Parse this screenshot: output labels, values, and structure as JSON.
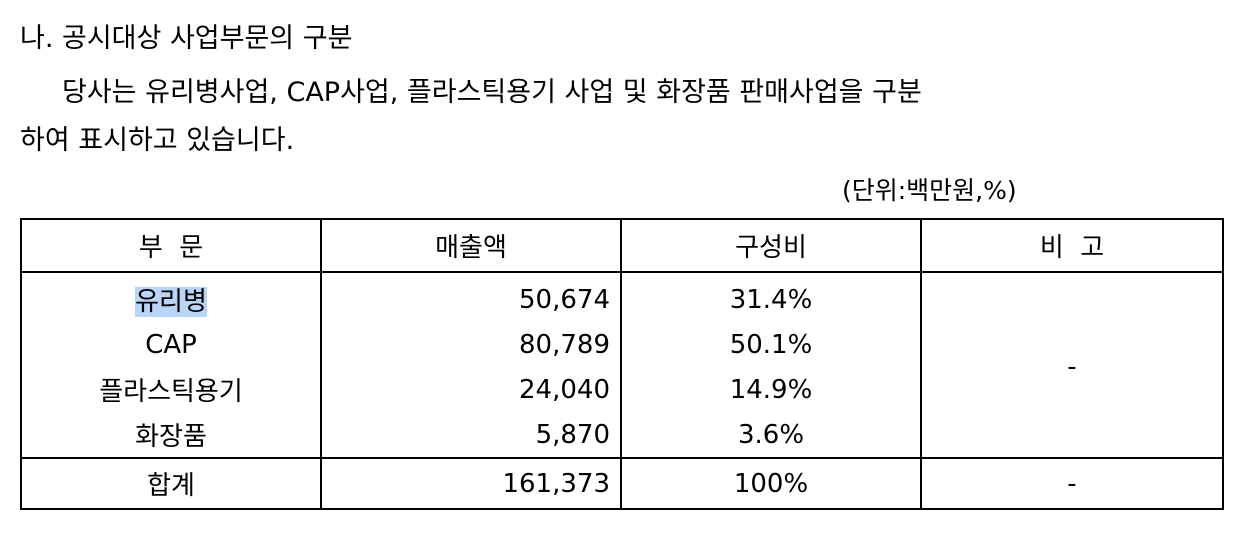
{
  "heading": "나. 공시대상 사업부문의 구분",
  "paragraph_line1": "당사는 유리병사업, CAP사업, 플라스틱용기 사업 및 화장품 판매사업을 구분",
  "paragraph_line2": "하여 표시하고 있습니다.",
  "unit_label": "(단위:백만원,%)",
  "table": {
    "headers": {
      "segment": "부  문",
      "sales": "매출액",
      "ratio": "구성비",
      "note": "비  고"
    },
    "rows": [
      {
        "segment": "유리병",
        "sales": "50,674",
        "ratio": "31.4%"
      },
      {
        "segment": "CAP",
        "sales": "80,789",
        "ratio": "50.1%"
      },
      {
        "segment": "플라스틱용기",
        "sales": "24,040",
        "ratio": "14.9%"
      },
      {
        "segment": "화장품",
        "sales": "5,870",
        "ratio": "3.6%"
      }
    ],
    "rows_note": "-",
    "total": {
      "segment": "합계",
      "sales": "161,373",
      "ratio": "100%",
      "note": "-"
    }
  }
}
